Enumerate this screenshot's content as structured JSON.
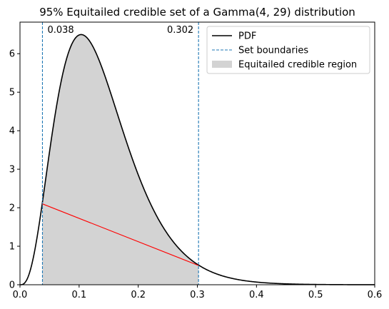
{
  "chart_data": {
    "type": "line",
    "title": "95% Equitailed credible set of a Gamma(4, 29) distribution",
    "xlabel": "",
    "ylabel": "",
    "xlim": [
      0,
      0.6
    ],
    "ylim": [
      0,
      6.82
    ],
    "x_ticks": [
      0.0,
      0.1,
      0.2,
      0.3,
      0.4,
      0.5,
      0.6
    ],
    "x_tick_labels": [
      "0.0",
      "0.1",
      "0.2",
      "0.3",
      "0.4",
      "0.5",
      "0.6"
    ],
    "y_ticks": [
      0,
      1,
      2,
      3,
      4,
      5,
      6
    ],
    "y_tick_labels": [
      "0",
      "1",
      "2",
      "3",
      "4",
      "5",
      "6"
    ],
    "grid": false,
    "legend_position": "top-right",
    "distribution": {
      "shape": 4,
      "rate": 29
    },
    "series": [
      {
        "name": "PDF",
        "kind": "line",
        "color": "#000000"
      },
      {
        "name": "Set boundaries",
        "kind": "dashed-vline",
        "color": "#1f77b4",
        "x": [
          0.038,
          0.302
        ]
      },
      {
        "name": "Equitailed credible region",
        "kind": "fill",
        "color": "#d3d3d3",
        "x_range": [
          0.038,
          0.302
        ]
      }
    ],
    "connector_line": {
      "color": "#ff0000",
      "points": [
        [
          0.038,
          2.1
        ],
        [
          0.302,
          0.5
        ]
      ]
    },
    "annotations": [
      {
        "text": "0.038",
        "x": 0.038,
        "align": "left"
      },
      {
        "text": "0.302",
        "x": 0.302,
        "align": "right"
      }
    ]
  }
}
